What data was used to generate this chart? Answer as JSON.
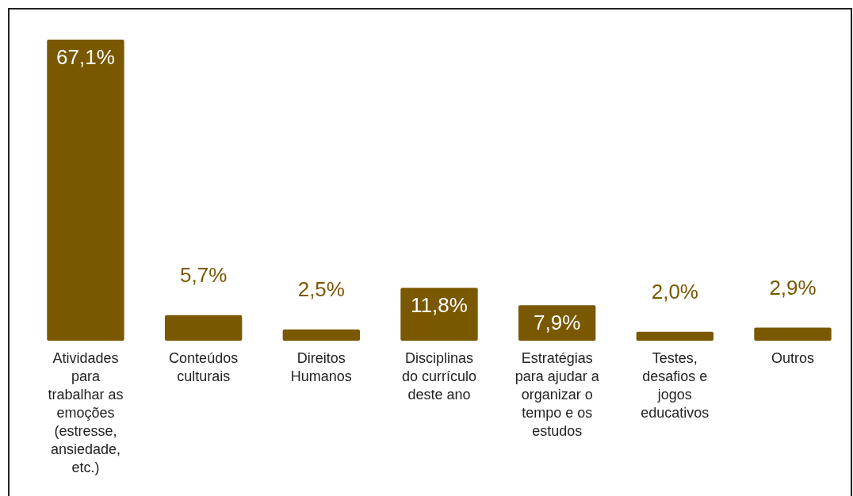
{
  "chart_data": {
    "type": "bar",
    "categories": [
      "Atividades para trabalhar as emoções (estresse, ansiedade, etc.)",
      "Conteúdos culturais",
      "Direitos Humanos",
      "Disciplinas do currículo deste ano",
      "Estratégias para ajudar a organizar o tempo e os estudos",
      "Testes, desafios e jogos educativos",
      "Outros"
    ],
    "values": [
      67.1,
      5.7,
      2.5,
      11.8,
      7.9,
      2.0,
      2.9
    ],
    "value_labels": [
      "67,1%",
      "5,7%",
      "2,5%",
      "11,8%",
      "7,9%",
      "2,0%",
      "2,9%"
    ],
    "color": "#7a5800"
  }
}
